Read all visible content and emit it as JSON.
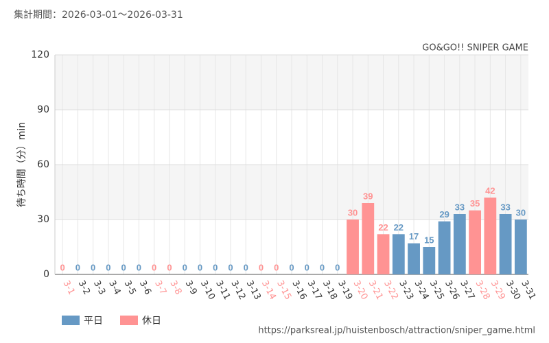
{
  "chart_data": {
    "type": "bar",
    "title": "集計期間：2026-03-01〜2026-03-31",
    "subtitle": "GO&GO!! SNIPER GAME",
    "y_label": "待ち時間（分）min",
    "source": "https://parksreal.jp/huistenbosch/attraction/sniper_game.html",
    "categories": [
      "3-1",
      "3-2",
      "3-3",
      "3-4",
      "3-5",
      "3-6",
      "3-7",
      "3-8",
      "3-9",
      "3-10",
      "3-11",
      "3-12",
      "3-13",
      "3-14",
      "3-15",
      "3-16",
      "3-17",
      "3-18",
      "3-19",
      "3-20",
      "3-21",
      "3-22",
      "3-23",
      "3-24",
      "3-25",
      "3-26",
      "3-27",
      "3-28",
      "3-29",
      "3-30",
      "3-31"
    ],
    "series": [
      {
        "name": "平日",
        "color": "#6699c4",
        "values": [
          null,
          0,
          0,
          0,
          0,
          0,
          null,
          null,
          0,
          0,
          0,
          0,
          0,
          null,
          null,
          0,
          0,
          0,
          0,
          null,
          null,
          null,
          22,
          17,
          15,
          29,
          33,
          null,
          null,
          33,
          30
        ]
      },
      {
        "name": "休日",
        "color": "#ff9393",
        "values": [
          0,
          null,
          null,
          null,
          null,
          null,
          0,
          0,
          null,
          null,
          null,
          null,
          null,
          0,
          0,
          null,
          null,
          null,
          null,
          30,
          39,
          22,
          null,
          null,
          null,
          null,
          null,
          35,
          42,
          null,
          null
        ]
      }
    ],
    "ylim": [
      0,
      120
    ],
    "yticks": [
      0,
      30,
      60,
      90,
      120
    ],
    "grid": true
  }
}
